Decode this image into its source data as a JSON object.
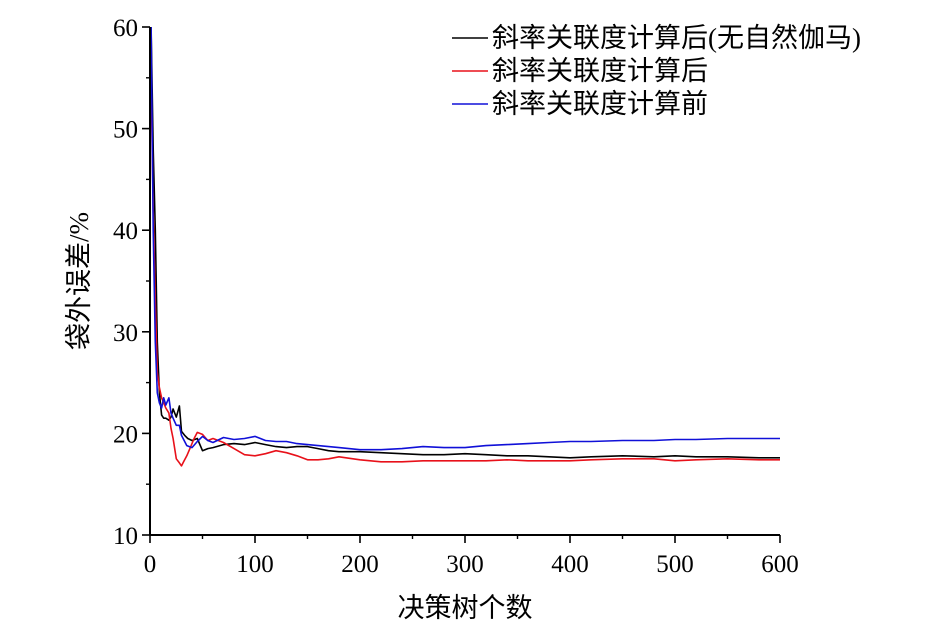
{
  "chart_data": {
    "type": "line",
    "xlabel": "决策树个数",
    "ylabel": "袋外误差/%",
    "xlim": [
      0,
      600
    ],
    "ylim": [
      10,
      60
    ],
    "xticks": [
      0,
      100,
      200,
      300,
      400,
      500,
      600
    ],
    "yticks": [
      10,
      20,
      30,
      40,
      50,
      60
    ],
    "grid": false,
    "legend_position": "top-right",
    "series": [
      {
        "name": "斜率关联度计算后(无自然伽马)",
        "color": "#000000",
        "x": [
          1,
          3,
          5,
          7,
          9,
          11,
          13,
          15,
          18,
          20,
          22,
          25,
          28,
          30,
          33,
          36,
          40,
          45,
          50,
          55,
          60,
          70,
          80,
          90,
          100,
          110,
          120,
          130,
          140,
          150,
          160,
          170,
          180,
          200,
          220,
          240,
          260,
          280,
          300,
          320,
          340,
          360,
          380,
          400,
          420,
          450,
          480,
          500,
          520,
          550,
          580,
          600
        ],
        "values": [
          60,
          48,
          40,
          29,
          24,
          21.8,
          21.5,
          21.5,
          21.3,
          21.6,
          22.4,
          21.6,
          22.7,
          20.2,
          19.8,
          19.5,
          19.3,
          19.5,
          18.3,
          18.5,
          18.6,
          18.9,
          19,
          18.9,
          19.1,
          18.9,
          18.7,
          18.6,
          18.7,
          18.7,
          18.5,
          18.3,
          18.2,
          18.2,
          18.1,
          18,
          17.9,
          17.9,
          18,
          17.9,
          17.8,
          17.8,
          17.7,
          17.6,
          17.7,
          17.8,
          17.7,
          17.8,
          17.7,
          17.7,
          17.6,
          17.6
        ]
      },
      {
        "name": "斜率关联度计算后",
        "color": "#e8111a",
        "x": [
          1,
          3,
          5,
          7,
          9,
          11,
          13,
          15,
          18,
          20,
          22,
          25,
          28,
          30,
          32,
          35,
          38,
          42,
          45,
          50,
          55,
          60,
          70,
          80,
          90,
          100,
          110,
          120,
          130,
          140,
          150,
          160,
          170,
          180,
          200,
          220,
          240,
          260,
          280,
          300,
          320,
          340,
          360,
          380,
          400,
          420,
          450,
          480,
          500,
          520,
          550,
          580,
          600
        ],
        "values": [
          55,
          42,
          33,
          26,
          24.5,
          23.5,
          23,
          22.5,
          22,
          20.5,
          19.5,
          17.5,
          17.1,
          16.8,
          17.2,
          17.8,
          18.5,
          19.5,
          20.1,
          19.9,
          19.3,
          19.5,
          19.1,
          18.5,
          17.9,
          17.8,
          18,
          18.3,
          18.1,
          17.8,
          17.4,
          17.4,
          17.5,
          17.7,
          17.4,
          17.2,
          17.2,
          17.3,
          17.3,
          17.3,
          17.3,
          17.4,
          17.3,
          17.3,
          17.3,
          17.4,
          17.5,
          17.5,
          17.3,
          17.4,
          17.5,
          17.4,
          17.4
        ]
      },
      {
        "name": "斜率关联度计算前",
        "color": "#1010d8",
        "x": [
          1,
          3,
          5,
          7,
          9,
          11,
          13,
          15,
          18,
          20,
          22,
          25,
          28,
          30,
          35,
          40,
          45,
          50,
          55,
          60,
          70,
          80,
          90,
          100,
          110,
          120,
          130,
          140,
          150,
          160,
          170,
          180,
          200,
          220,
          240,
          260,
          280,
          300,
          320,
          340,
          360,
          380,
          400,
          420,
          450,
          480,
          500,
          520,
          550,
          580,
          600
        ],
        "values": [
          60,
          40,
          29,
          24,
          23,
          22.5,
          23.5,
          22.8,
          23.5,
          22,
          21.5,
          20.8,
          20.8,
          19.8,
          18.8,
          18.6,
          19.2,
          19.7,
          19.3,
          19.1,
          19.6,
          19.4,
          19.5,
          19.7,
          19.3,
          19.2,
          19.2,
          19,
          18.9,
          18.8,
          18.7,
          18.6,
          18.4,
          18.4,
          18.5,
          18.7,
          18.6,
          18.6,
          18.8,
          18.9,
          19,
          19.1,
          19.2,
          19.2,
          19.3,
          19.3,
          19.4,
          19.4,
          19.5,
          19.5,
          19.5
        ]
      }
    ]
  }
}
